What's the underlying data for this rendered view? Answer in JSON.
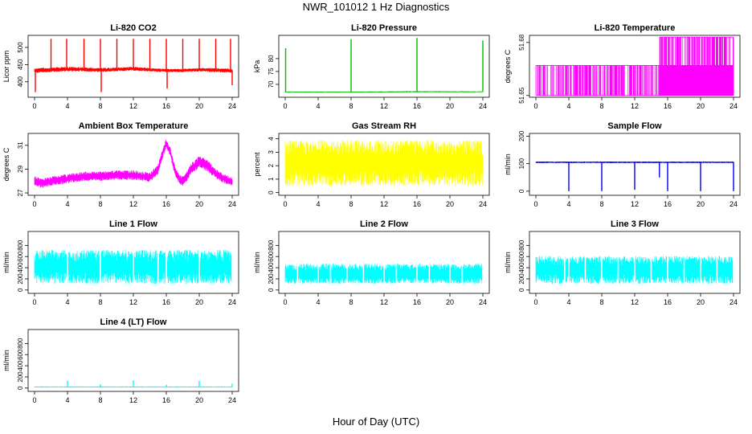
{
  "figure": {
    "title": "NWR_101012  1 Hz Diagnostics",
    "xlabel": "Hour of Day (UTC)"
  },
  "chart_data": [
    {
      "type": "line",
      "title": "Li-820 CO2",
      "ylabel": "Licor ppm",
      "color": "#ff0000",
      "xlim": [
        0,
        24
      ],
      "xticks": [
        0,
        4,
        8,
        12,
        16,
        20,
        24
      ],
      "ylim": [
        355,
        535
      ],
      "yticks": [
        400,
        450,
        500
      ],
      "series": [
        {
          "kind": "band",
          "x": [
            0,
            2,
            4,
            6,
            8,
            10,
            12,
            14,
            16,
            18,
            20,
            22,
            24
          ],
          "low": [
            425,
            428,
            430,
            430,
            428,
            430,
            432,
            430,
            428,
            428,
            430,
            428,
            425
          ],
          "high": [
            440,
            442,
            444,
            442,
            440,
            442,
            444,
            440,
            438,
            438,
            440,
            440,
            438
          ]
        }
      ],
      "spikes": [
        {
          "x": 0.1,
          "y": 370
        },
        {
          "x": 2.0,
          "y": 525
        },
        {
          "x": 3.9,
          "y": 525
        },
        {
          "x": 6.0,
          "y": 525
        },
        {
          "x": 8.0,
          "y": 525
        },
        {
          "x": 8.1,
          "y": 370
        },
        {
          "x": 10.0,
          "y": 525
        },
        {
          "x": 12.0,
          "y": 525
        },
        {
          "x": 14.0,
          "y": 525
        },
        {
          "x": 16.0,
          "y": 525
        },
        {
          "x": 16.1,
          "y": 380
        },
        {
          "x": 18.0,
          "y": 525
        },
        {
          "x": 20.0,
          "y": 525
        },
        {
          "x": 22.0,
          "y": 525
        },
        {
          "x": 23.8,
          "y": 525
        },
        {
          "x": 24.0,
          "y": 390
        }
      ]
    },
    {
      "type": "line",
      "title": "Li-820 Pressure",
      "ylabel": "kPa",
      "color": "#00bb00",
      "xlim": [
        0,
        24
      ],
      "xticks": [
        0,
        4,
        8,
        12,
        16,
        20,
        24
      ],
      "ylim": [
        65,
        89
      ],
      "yticks": [
        70,
        75,
        80
      ],
      "series": [
        {
          "kind": "band",
          "x": [
            0,
            8,
            16,
            24
          ],
          "low": [
            66.8,
            66.8,
            66.9,
            66.9
          ],
          "high": [
            67.2,
            67.2,
            67.4,
            67.3
          ]
        }
      ],
      "spikes": [
        {
          "x": 0.05,
          "y": 84
        },
        {
          "x": 8.0,
          "y": 87.5
        },
        {
          "x": 16.0,
          "y": 88
        },
        {
          "x": 24.0,
          "y": 87
        }
      ]
    },
    {
      "type": "line",
      "title": "Li-820 Temperature",
      "ylabel": "degrees C",
      "color": "#ff00ff",
      "xlim": [
        0,
        24
      ],
      "xticks": [
        0,
        4,
        8,
        12,
        16,
        20,
        24
      ],
      "ylim": [
        51.649,
        51.684
      ],
      "yticks": [
        51.65,
        51.68
      ],
      "levels": [
        51.65,
        51.667,
        51.683
      ],
      "series": [
        {
          "kind": "step",
          "x_start": 0,
          "x_end": 24,
          "low": 51.65,
          "mid": 51.667,
          "high": 51.683,
          "high_from": 15.0
        }
      ]
    },
    {
      "type": "line",
      "title": "Ambient Box Temperature",
      "ylabel": "degrees C",
      "color": "#ff00ff",
      "xlim": [
        0,
        24
      ],
      "xticks": [
        0,
        4,
        8,
        12,
        16,
        20,
        24
      ],
      "ylim": [
        26.8,
        32
      ],
      "yticks": [
        27,
        29,
        31
      ],
      "series": [
        {
          "kind": "band",
          "x": [
            0,
            1,
            2,
            4,
            6,
            8,
            10,
            12,
            13,
            14,
            15,
            15.5,
            16,
            16.5,
            17,
            17.5,
            18,
            18.5,
            19,
            20,
            21,
            22,
            23,
            24
          ],
          "low": [
            27.6,
            27.4,
            27.6,
            27.8,
            28.0,
            28.0,
            28.1,
            28.1,
            28.0,
            27.9,
            28.6,
            29.8,
            30.8,
            30.0,
            28.6,
            27.8,
            27.6,
            28.0,
            28.6,
            29.1,
            28.8,
            28.2,
            27.8,
            27.6
          ],
          "high": [
            28.4,
            28.2,
            28.4,
            28.6,
            28.8,
            28.8,
            28.9,
            28.9,
            28.8,
            28.7,
            29.4,
            30.6,
            31.6,
            30.8,
            29.4,
            28.6,
            28.4,
            28.8,
            29.5,
            30.1,
            29.8,
            29.0,
            28.6,
            28.3
          ]
        }
      ]
    },
    {
      "type": "line",
      "title": "Gas Stream RH",
      "ylabel": "percent",
      "color": "#ffff00",
      "xlim": [
        0,
        24
      ],
      "xticks": [
        0,
        4,
        8,
        12,
        16,
        20,
        24
      ],
      "ylim": [
        -0.2,
        4.4
      ],
      "yticks": [
        0,
        1,
        2,
        3,
        4
      ],
      "series": [
        {
          "kind": "band",
          "x": [
            0,
            24
          ],
          "low": [
            0.5,
            0.5
          ],
          "high": [
            3.9,
            3.9
          ]
        }
      ]
    },
    {
      "type": "line",
      "title": "Sample Flow",
      "ylabel": "ml/min",
      "color": "#0000ff",
      "xlim": [
        0,
        24
      ],
      "xticks": [
        0,
        4,
        8,
        12,
        16,
        20,
        24
      ],
      "ylim": [
        -15,
        210
      ],
      "yticks": [
        0,
        100,
        200
      ],
      "series": [
        {
          "kind": "band",
          "x": [
            0,
            24
          ],
          "low": [
            102,
            102
          ],
          "high": [
            108,
            108
          ]
        }
      ],
      "spikes": [
        {
          "x": 4.0,
          "y": 0
        },
        {
          "x": 8.0,
          "y": 0
        },
        {
          "x": 12.0,
          "y": 5
        },
        {
          "x": 15.0,
          "y": 50
        },
        {
          "x": 16.0,
          "y": 0
        },
        {
          "x": 20.0,
          "y": 0
        },
        {
          "x": 24.0,
          "y": 0
        }
      ]
    },
    {
      "type": "line",
      "title": "Line 1 Flow",
      "ylabel": "ml/min",
      "color": "#00ffff",
      "xlim": [
        0,
        24
      ],
      "xticks": [
        0,
        4,
        8,
        12,
        16,
        20,
        24
      ],
      "ylim": [
        -60,
        1050
      ],
      "yticks": [
        0,
        200,
        400,
        600,
        800
      ],
      "series": [
        {
          "kind": "band",
          "x": [
            0,
            24
          ],
          "low": [
            110,
            110
          ],
          "high": [
            720,
            720
          ]
        }
      ],
      "gaps": [
        4.0,
        8.0,
        12.0,
        15.0,
        16.0,
        20.0,
        24.0
      ]
    },
    {
      "type": "line",
      "title": "Line 2 Flow",
      "ylabel": "ml/min",
      "color": "#00ffff",
      "xlim": [
        0,
        24
      ],
      "xticks": [
        0,
        4,
        8,
        12,
        16,
        20,
        24
      ],
      "ylim": [
        -60,
        1050
      ],
      "yticks": [
        0,
        200,
        400,
        600,
        800
      ],
      "series": [
        {
          "kind": "band",
          "x": [
            0,
            24
          ],
          "low": [
            110,
            110
          ],
          "high": [
            470,
            470
          ]
        }
      ],
      "gaps": [
        1.5,
        4.0,
        5.5,
        7.5,
        9.5,
        12.0,
        13.5,
        16.0,
        17.5,
        20.0,
        21.5,
        24.0
      ]
    },
    {
      "type": "line",
      "title": "Line 3 Flow",
      "ylabel": "ml/min",
      "color": "#00ffff",
      "xlim": [
        0,
        24
      ],
      "xticks": [
        0,
        4,
        8,
        12,
        16,
        20,
        24
      ],
      "ylim": [
        -60,
        1050
      ],
      "yticks": [
        0,
        200,
        400,
        600,
        800
      ],
      "series": [
        {
          "kind": "band",
          "x": [
            0,
            24
          ],
          "low": [
            110,
            110
          ],
          "high": [
            610,
            610
          ]
        }
      ],
      "gaps": [
        3.5,
        4.0,
        6.0,
        8.0,
        10.0,
        12.0,
        14.0,
        16.0,
        18.0,
        20.0,
        22.0,
        24.0
      ]
    },
    {
      "type": "line",
      "title": "Line 4 (LT) Flow",
      "ylabel": "ml/min",
      "color": "#00ffff",
      "xlim": [
        0,
        24
      ],
      "xticks": [
        0,
        4,
        8,
        12,
        16,
        20,
        24
      ],
      "ylim": [
        -60,
        1050
      ],
      "yticks": [
        0,
        200,
        400,
        600,
        800
      ],
      "series": [
        {
          "kind": "band",
          "x": [
            0,
            24
          ],
          "low": [
            10,
            10
          ],
          "high": [
            30,
            30
          ]
        }
      ],
      "spikes": [
        {
          "x": 4.0,
          "y": 130
        },
        {
          "x": 8.0,
          "y": 70
        },
        {
          "x": 12.0,
          "y": 140
        },
        {
          "x": 16.0,
          "y": 60
        },
        {
          "x": 20.0,
          "y": 130
        },
        {
          "x": 24.0,
          "y": 80
        }
      ]
    }
  ]
}
